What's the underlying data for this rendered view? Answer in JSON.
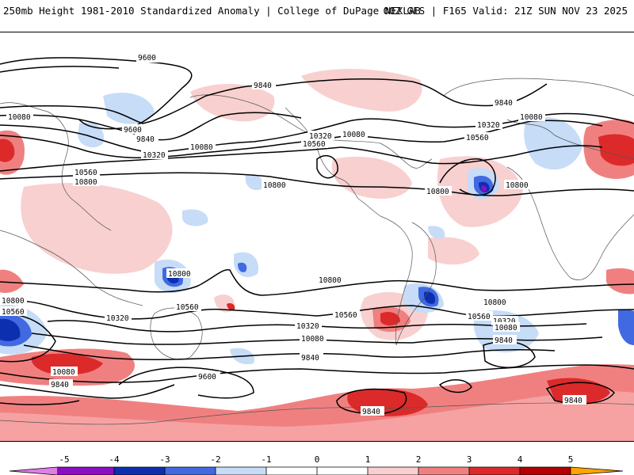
{
  "header": {
    "title_left": "250mb Height 1981-2010 Standardized Anomaly | College of DuPage NEXLAB",
    "title_right": "00Z GFS | F165 Valid: 21Z SUN NOV 23 2025"
  },
  "contour_labels": {
    "c9600_a": "9600",
    "c9840_a": "9840",
    "c9840_b": "9840",
    "c10080_a": "10080",
    "c10080_b": "10080",
    "c9600_b": "9600",
    "c9840_c": "9840",
    "c10080_c": "10080",
    "c10320_a": "10320",
    "c10560_a": "10560",
    "c10800_a": "10800",
    "c10800_b": "10800",
    "c10320_b": "10320",
    "c10080_d": "10080",
    "c10560_b": "10560",
    "c10560_c": "10560",
    "c10320_c": "10320",
    "c10800_c": "10800",
    "c10800_d": "10800",
    "c10080_e": "10080",
    "c10800_e": "10800",
    "c10800_f": "10800",
    "c10800_g": "10800",
    "c10560_d": "10560",
    "c10560_e": "10560",
    "c10320_d": "10320",
    "c10320_e": "10320",
    "c10080_f": "10080",
    "c10080_g": "10080",
    "c9840_d": "9840",
    "c9840_e": "9840",
    "c9600_c": "9600",
    "c10080_h": "10080",
    "c9840_f": "9840",
    "c9840_g": "9840",
    "c9840_h": "9840",
    "c10800_h": "10800",
    "c10560_f": "10560",
    "c10320_f": "10320",
    "c10560_g": "10560"
  },
  "colorbar": {
    "ticks": [
      "-5",
      "-4",
      "-3",
      "-2",
      "-1",
      "0",
      "1",
      "2",
      "3",
      "4",
      "5"
    ],
    "colors": {
      "m5": "#e07de6",
      "m4": "#8a0fc4",
      "m3": "#0c2fb0",
      "m2": "#4169e1",
      "m1": "#c6dcf7",
      "p0": "#ffffff",
      "p1": "#f8d0d0",
      "p2": "#f08080",
      "p3": "#dc2a2a",
      "p4": "#b40000",
      "p5": "#ffa500"
    }
  }
}
